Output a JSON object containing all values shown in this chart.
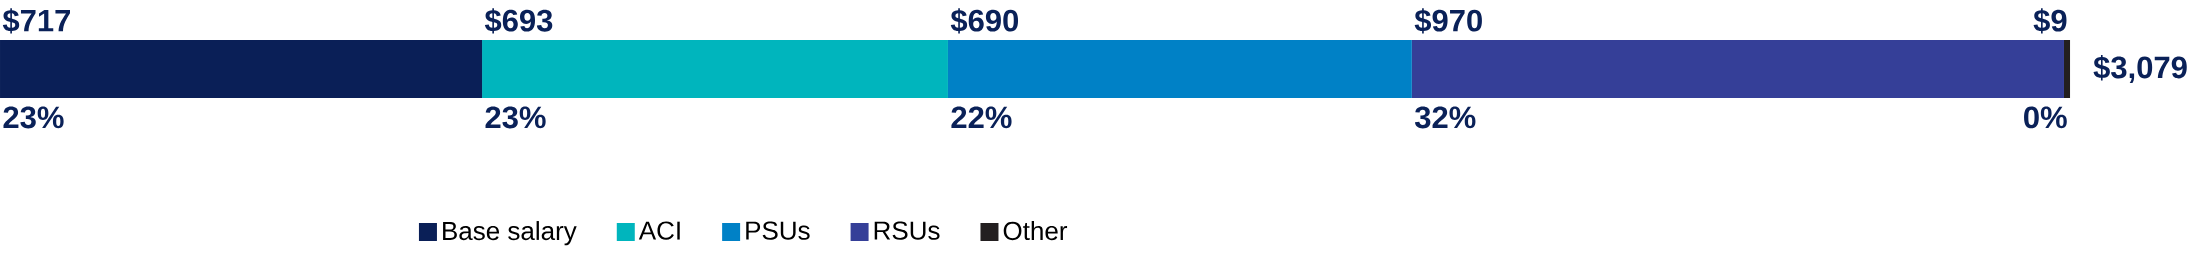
{
  "chart_data": {
    "type": "bar",
    "orientation": "horizontal",
    "stacked": true,
    "legend": "bottom",
    "categories": [
      null
    ],
    "series": [
      {
        "name": "Base salary",
        "color": "#0a1f57",
        "values": [
          717
        ],
        "value_labels": [
          "$717"
        ]
      },
      {
        "name": "ACI",
        "color": "#00b5bd",
        "values": [
          693
        ],
        "value_labels": [
          "$693"
        ]
      },
      {
        "name": "PSUs",
        "color": "#0081c6",
        "values": [
          690
        ],
        "value_labels": [
          "$690"
        ]
      },
      {
        "name": "RSUs",
        "color": "#353f98",
        "values": [
          970
        ],
        "value_labels": [
          "$970"
        ]
      },
      {
        "name": "Other",
        "color": "#231f20",
        "values": [
          9
        ],
        "value_labels": [
          "$9"
        ]
      }
    ],
    "totals": [
      "$3,079"
    ],
    "annotations": [
      "23%",
      "23%",
      "22%",
      "32%",
      "0%"
    ]
  }
}
